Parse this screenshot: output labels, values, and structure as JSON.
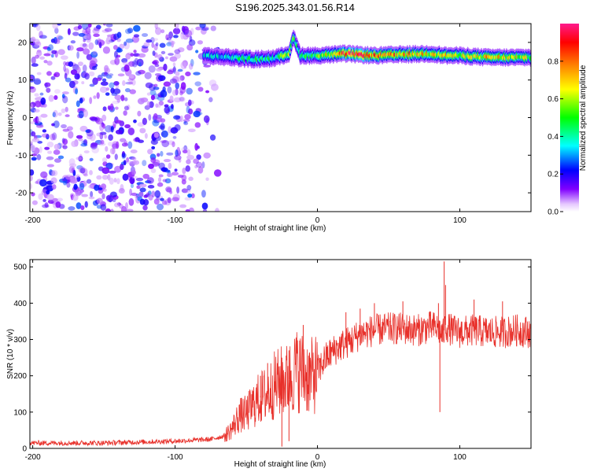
{
  "title": "S196.2025.343.01.56.R14",
  "chart_data": [
    {
      "type": "heatmap",
      "xlabel": "Height of straight line (km)",
      "ylabel": "Frequency (Hz)",
      "xlim": [
        -202,
        150
      ],
      "ylim": [
        -25,
        25
      ],
      "xticks": [
        "-200",
        "-100",
        "0",
        "100"
      ],
      "yticks": [
        "-20",
        "-10",
        "0",
        "10",
        "20"
      ],
      "colorbar": {
        "label": "Normalized spectral amplitude",
        "range": [
          0,
          1
        ],
        "ticks": [
          "0.0",
          "0.2",
          "0.4",
          "0.6",
          "0.8"
        ],
        "colormap": [
          "#ffffff",
          "#8000ff",
          "#0000ff",
          "#00ffff",
          "#00ff00",
          "#ffff00",
          "#ff8000",
          "#ff0000",
          "#ff00aa"
        ]
      },
      "noise_region_x": [
        -202,
        -70
      ],
      "signal_ridge": {
        "x": [
          -80,
          -60,
          -45,
          -30,
          -20,
          -17,
          -12,
          0,
          20,
          40,
          60,
          80,
          90,
          100,
          120,
          150
        ],
        "frequency_hz": [
          16.5,
          16.0,
          15.5,
          15.8,
          17.0,
          21.5,
          16.5,
          16.5,
          17.0,
          16.5,
          16.8,
          17.0,
          16.5,
          16.5,
          16.0,
          16.0
        ],
        "amplitude": [
          0.35,
          0.4,
          0.5,
          0.45,
          0.6,
          0.55,
          0.45,
          0.55,
          0.95,
          0.85,
          0.8,
          0.7,
          0.75,
          0.6,
          0.75,
          0.6
        ]
      }
    },
    {
      "type": "line",
      "xlabel": "Height of straight line (km)",
      "ylabel": "SNR (10 * v/v)",
      "xlim": [
        -202,
        150
      ],
      "ylim": [
        0,
        520
      ],
      "xticks": [
        "-200",
        "-100",
        "0",
        "100"
      ],
      "yticks": [
        "0",
        "100",
        "200",
        "300",
        "400",
        "500"
      ],
      "color": "#e8302a",
      "series": [
        {
          "x": [
            -202,
            -150,
            -100,
            -75,
            -65,
            -60,
            -55,
            -50,
            -45,
            -40,
            -35,
            -30,
            -25,
            -20,
            -15,
            -10,
            -5,
            0,
            5,
            10,
            15,
            20,
            25,
            30,
            40,
            50,
            60,
            70,
            80,
            85,
            88,
            90,
            92,
            95,
            100,
            110,
            120,
            130,
            140,
            150
          ],
          "values": [
            15,
            15,
            20,
            25,
            35,
            55,
            90,
            95,
            120,
            140,
            150,
            175,
            185,
            190,
            215,
            210,
            195,
            210,
            245,
            265,
            280,
            290,
            300,
            315,
            325,
            330,
            330,
            325,
            335,
            330,
            310,
            340,
            330,
            325,
            320,
            325,
            320,
            320,
            325,
            320
          ],
          "spikes": [
            {
              "x": -55,
              "value": 120
            },
            {
              "x": -40,
              "value": 200
            },
            {
              "x": -35,
              "value": 235
            },
            {
              "x": -25,
              "value": 250
            },
            {
              "x": -20,
              "value": 270
            },
            {
              "x": -15,
              "value": 305
            },
            {
              "x": -10,
              "value": 340
            },
            {
              "x": -20,
              "value": 20
            },
            {
              "x": -25,
              "value": 5
            },
            {
              "x": 20,
              "value": 375
            },
            {
              "x": 30,
              "value": 385
            },
            {
              "x": 40,
              "value": 400
            },
            {
              "x": 60,
              "value": 405
            },
            {
              "x": 85,
              "value": 400
            },
            {
              "x": 86,
              "value": 100
            },
            {
              "x": 89,
              "value": 515
            },
            {
              "x": 90,
              "value": 450
            },
            {
              "x": 110,
              "value": 410
            },
            {
              "x": 130,
              "value": 405
            },
            {
              "x": 150,
              "value": 380
            }
          ]
        }
      ]
    }
  ]
}
